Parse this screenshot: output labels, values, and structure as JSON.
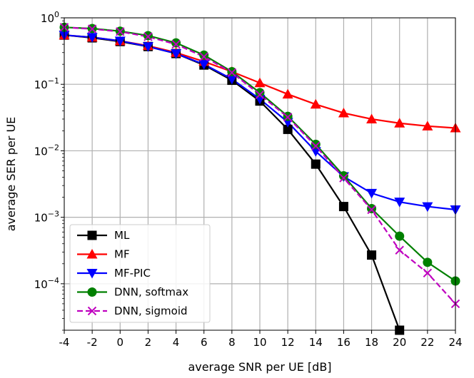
{
  "chart_data": {
    "type": "line",
    "title": "",
    "xlabel": "average SNR per UE [dB]",
    "ylabel": "average SER per UE",
    "xlim": [
      -4,
      24
    ],
    "ylim": [
      2e-05,
      1
    ],
    "yscale": "log",
    "grid": true,
    "legend_position": "lower-left",
    "x_ticks": [
      -4,
      -2,
      0,
      2,
      4,
      6,
      8,
      10,
      12,
      14,
      16,
      18,
      20,
      22,
      24
    ],
    "x_tick_labels": [
      "-4",
      "-2",
      "0",
      "2",
      "4",
      "6",
      "8",
      "10",
      "12",
      "14",
      "16",
      "18",
      "20",
      "22",
      "24"
    ],
    "y_ticks": [
      {
        "value": 1,
        "base": "10",
        "exp": "0"
      },
      {
        "value": 0.1,
        "base": "10",
        "exp": "−1"
      },
      {
        "value": 0.01,
        "base": "10",
        "exp": "−2"
      },
      {
        "value": 0.001,
        "base": "10",
        "exp": "−3"
      },
      {
        "value": 0.0001,
        "base": "10",
        "exp": "−4"
      }
    ],
    "series": [
      {
        "name": "ML",
        "color": "#000000",
        "marker": "square",
        "dashed": false,
        "x": [
          -4,
          -2,
          0,
          2,
          4,
          6,
          8,
          10,
          12,
          14,
          16,
          18,
          20
        ],
        "values": [
          0.55,
          0.5,
          0.44,
          0.37,
          0.29,
          0.195,
          0.115,
          0.056,
          0.021,
          0.0063,
          0.00145,
          0.00027,
          2e-05
        ]
      },
      {
        "name": "MF",
        "color": "#ff0000",
        "marker": "triangle-up",
        "dashed": false,
        "x": [
          -4,
          -2,
          0,
          2,
          4,
          6,
          8,
          10,
          12,
          14,
          16,
          18,
          20,
          22,
          24
        ],
        "values": [
          0.55,
          0.51,
          0.45,
          0.38,
          0.3,
          0.22,
          0.155,
          0.105,
          0.071,
          0.05,
          0.037,
          0.03,
          0.026,
          0.0235,
          0.022
        ]
      },
      {
        "name": "MF-PIC",
        "color": "#0000ff",
        "marker": "triangle-down",
        "dashed": false,
        "x": [
          -4,
          -2,
          0,
          2,
          4,
          6,
          8,
          10,
          12,
          14,
          16,
          18,
          20,
          22,
          24
        ],
        "values": [
          0.55,
          0.51,
          0.45,
          0.37,
          0.29,
          0.2,
          0.12,
          0.06,
          0.027,
          0.0098,
          0.0041,
          0.0023,
          0.0017,
          0.00145,
          0.0013
        ]
      },
      {
        "name": "DNN, softmax",
        "color": "#008000",
        "marker": "circle",
        "dashed": false,
        "x": [
          -4,
          -2,
          0,
          2,
          4,
          6,
          8,
          10,
          12,
          14,
          16,
          18,
          20,
          22,
          24
        ],
        "values": [
          0.72,
          0.69,
          0.63,
          0.54,
          0.42,
          0.275,
          0.155,
          0.075,
          0.033,
          0.0125,
          0.0042,
          0.00135,
          0.00052,
          0.00021,
          0.00011
        ]
      },
      {
        "name": "DNN, sigmoid",
        "color": "#bf00bf",
        "marker": "x",
        "dashed": true,
        "x": [
          -4,
          -2,
          0,
          2,
          4,
          6,
          8,
          10,
          12,
          14,
          16,
          18,
          20,
          22,
          24
        ],
        "values": [
          0.72,
          0.68,
          0.62,
          0.52,
          0.4,
          0.26,
          0.15,
          0.07,
          0.032,
          0.0118,
          0.0039,
          0.0013,
          0.00032,
          0.000145,
          5e-05
        ]
      }
    ]
  }
}
